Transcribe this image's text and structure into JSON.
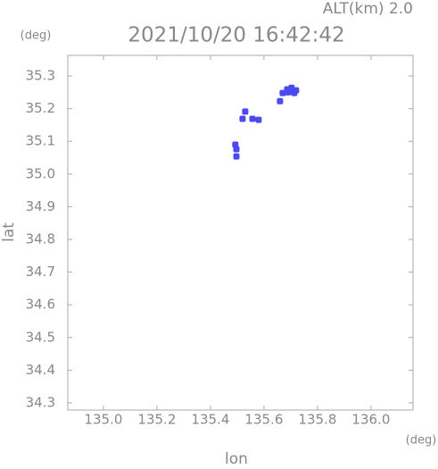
{
  "chart_data": {
    "type": "scatter",
    "title": "2021/10/20 16:42:42",
    "subtitle": "ALT(km) 2.0",
    "y_unit": "(deg)",
    "x_unit": "(deg)",
    "xlabel": "lon",
    "ylabel": "lat",
    "color": "#4a4af0",
    "xlim": [
      134.867,
      136.157
    ],
    "ylim": [
      34.278,
      35.363
    ],
    "xticks": [
      {
        "value": 135.0,
        "label": "135.0"
      },
      135.2,
      135.4,
      135.6,
      135.8,
      {
        "value": 136.0,
        "label": "136.0"
      }
    ],
    "yticks": [
      34.3,
      34.4,
      34.5,
      34.6,
      34.7,
      34.8,
      34.9,
      {
        "value": 35.0,
        "label": "35.0"
      },
      35.1,
      35.2,
      35.3
    ],
    "x": [
      135.67,
      135.687,
      135.703,
      135.72,
      135.713,
      135.69,
      135.697,
      135.66,
      135.53,
      135.557,
      135.58,
      135.52,
      135.493,
      135.497,
      135.497
    ],
    "y": [
      35.248,
      35.259,
      35.264,
      35.256,
      35.248,
      35.25,
      35.255,
      35.223,
      35.191,
      35.169,
      35.166,
      35.169,
      35.09,
      35.076,
      35.054
    ],
    "grid": false
  }
}
